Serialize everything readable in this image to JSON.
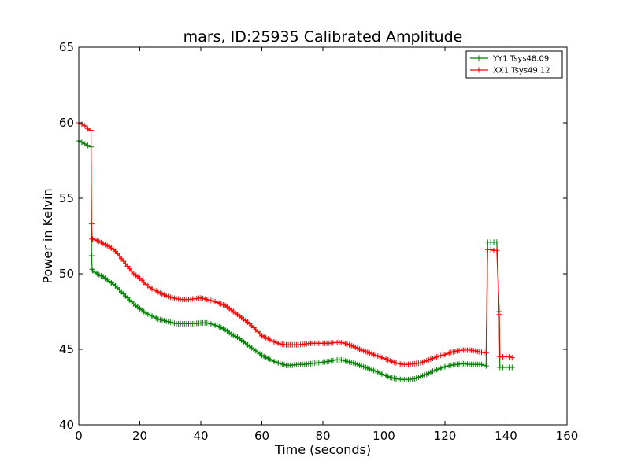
{
  "chart_data": {
    "type": "line",
    "title": "mars, ID:25935 Calibrated Amplitude",
    "xlabel": "Time (seconds)",
    "ylabel": "Power in Kelvin",
    "xlim": [
      0,
      160
    ],
    "ylim": [
      40,
      65
    ],
    "xticks": [
      0,
      20,
      40,
      60,
      80,
      100,
      120,
      140,
      160
    ],
    "yticks": [
      40,
      45,
      50,
      55,
      60,
      65
    ],
    "xtick_labels": [
      "0",
      "20",
      "40",
      "60",
      "80",
      "100",
      "120",
      "140",
      "160"
    ],
    "ytick_labels": [
      "40",
      "45",
      "50",
      "55",
      "60",
      "65"
    ],
    "grid": false,
    "legend_position": "top-right",
    "marker": "+",
    "series": [
      {
        "name": "YY1 Tsys48.09",
        "color": "#008000",
        "x": [
          0,
          1,
          2,
          3,
          4,
          4.2,
          4.4,
          4.6,
          6,
          8,
          10,
          12,
          14,
          16,
          18,
          20,
          22,
          24,
          26,
          28,
          30,
          32,
          34,
          36,
          38,
          40,
          42,
          44,
          46,
          48,
          50,
          52,
          54,
          56,
          58,
          60,
          62,
          64,
          66,
          68,
          70,
          72,
          74,
          76,
          78,
          80,
          82,
          84,
          86,
          88,
          90,
          92,
          94,
          96,
          98,
          100,
          102,
          104,
          106,
          108,
          110,
          112,
          114,
          116,
          118,
          120,
          122,
          124,
          126,
          128,
          130,
          132,
          133.5,
          134,
          135,
          136,
          137,
          137.8,
          138,
          139,
          140,
          141,
          142
        ],
        "values": [
          58.8,
          58.7,
          58.6,
          58.5,
          58.4,
          51.2,
          50.3,
          50.2,
          50.0,
          49.8,
          49.5,
          49.2,
          48.8,
          48.4,
          48.0,
          47.7,
          47.4,
          47.2,
          47.0,
          46.9,
          46.8,
          46.7,
          46.7,
          46.7,
          46.7,
          46.75,
          46.75,
          46.65,
          46.5,
          46.3,
          46.0,
          45.8,
          45.5,
          45.2,
          44.9,
          44.6,
          44.4,
          44.2,
          44.05,
          43.95,
          43.95,
          44.0,
          44.0,
          44.05,
          44.1,
          44.15,
          44.2,
          44.3,
          44.3,
          44.2,
          44.1,
          43.95,
          43.8,
          43.65,
          43.5,
          43.3,
          43.15,
          43.05,
          43.0,
          43.0,
          43.05,
          43.2,
          43.35,
          43.55,
          43.7,
          43.85,
          43.95,
          44.0,
          44.05,
          44.0,
          44.0,
          44.0,
          43.9,
          52.1,
          52.1,
          52.1,
          52.1,
          47.5,
          43.8,
          43.8,
          43.8,
          43.8,
          43.8
        ]
      },
      {
        "name": "XX1 Tsys49.12",
        "color": "#ff0000",
        "x": [
          0,
          1,
          2,
          3,
          4,
          4.2,
          4.4,
          4.6,
          6,
          8,
          10,
          12,
          14,
          16,
          18,
          20,
          22,
          24,
          26,
          28,
          30,
          32,
          34,
          36,
          38,
          40,
          42,
          44,
          46,
          48,
          50,
          52,
          54,
          56,
          58,
          60,
          62,
          64,
          66,
          68,
          70,
          72,
          74,
          76,
          78,
          80,
          82,
          84,
          86,
          88,
          90,
          92,
          94,
          96,
          98,
          100,
          102,
          104,
          106,
          108,
          110,
          112,
          114,
          116,
          118,
          120,
          122,
          124,
          126,
          128,
          130,
          132,
          133.5,
          134,
          135,
          136,
          137,
          137.8,
          138,
          139,
          140,
          141,
          142
        ],
        "values": [
          60.0,
          59.9,
          59.8,
          59.6,
          59.5,
          53.3,
          52.3,
          52.3,
          52.2,
          52.0,
          51.8,
          51.5,
          51.0,
          50.5,
          50.0,
          49.7,
          49.3,
          49.0,
          48.8,
          48.6,
          48.45,
          48.35,
          48.3,
          48.3,
          48.35,
          48.4,
          48.3,
          48.2,
          48.05,
          47.9,
          47.6,
          47.3,
          47.0,
          46.7,
          46.3,
          45.9,
          45.7,
          45.5,
          45.35,
          45.3,
          45.3,
          45.3,
          45.35,
          45.4,
          45.4,
          45.4,
          45.4,
          45.45,
          45.45,
          45.35,
          45.2,
          45.0,
          44.85,
          44.7,
          44.55,
          44.4,
          44.25,
          44.1,
          44.0,
          44.0,
          44.05,
          44.1,
          44.25,
          44.4,
          44.55,
          44.65,
          44.8,
          44.9,
          44.95,
          44.95,
          44.9,
          44.8,
          44.75,
          51.6,
          51.6,
          51.55,
          51.55,
          47.3,
          44.5,
          44.5,
          44.55,
          44.5,
          44.45
        ]
      }
    ]
  }
}
